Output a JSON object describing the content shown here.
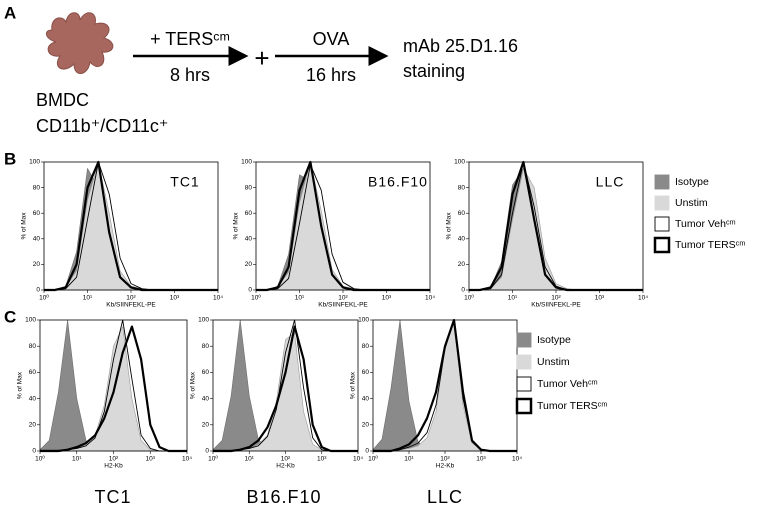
{
  "panel_a": {
    "label": "A",
    "step1": "+ TERSᶜᵐ",
    "time1": "8 hrs",
    "plus": "+",
    "step2": "OVA",
    "time2": "16 hrs",
    "readout": [
      "mAb 25.D1.16",
      "staining"
    ],
    "cells": [
      "BMDC",
      "CD11b⁺/CD11c⁺"
    ]
  },
  "panels": {
    "b": "B",
    "c": "C"
  },
  "chart_data": [
    {
      "type": "density",
      "title": "TC1",
      "x_label": "Kb/SIINFEKL-PE",
      "y_label": "% of Max",
      "xscale": "log",
      "xlim": [
        1,
        10000
      ],
      "ylim": [
        0,
        100
      ],
      "xticks": [
        {
          "value": 1,
          "label": "10⁰"
        },
        {
          "value": 10,
          "label": "10¹"
        },
        {
          "value": 100,
          "label": "10²"
        },
        {
          "value": 1000,
          "label": "10³"
        },
        {
          "value": 10000,
          "label": "10⁴"
        }
      ],
      "yticks": [
        0,
        20,
        40,
        60,
        80,
        100
      ],
      "x": [
        1,
        1.78,
        3.16,
        5.62,
        10,
        17.8,
        31.6,
        56.2,
        100,
        178,
        316,
        562,
        1000,
        1780,
        3160,
        5620,
        10000
      ],
      "series": [
        {
          "name": "Isotype",
          "color": "#6e6e6e",
          "fill": "#8a8a8a",
          "values": [
            0,
            0,
            3,
            30,
            95,
            80,
            20,
            4,
            1,
            0,
            0,
            0,
            0,
            0,
            0,
            0,
            0
          ]
        },
        {
          "name": "Unstim",
          "color": "#9a9a9a",
          "fill": "#d9d9d9",
          "values": [
            0,
            0,
            2,
            15,
            70,
            100,
            60,
            15,
            3,
            1,
            0,
            0,
            0,
            0,
            0,
            0,
            0
          ]
        },
        {
          "name": "Tumor Vehᶜᵐ",
          "color": "#000000",
          "values": [
            0,
            0,
            1,
            10,
            55,
            100,
            75,
            25,
            5,
            1,
            0,
            0,
            0,
            0,
            0,
            0,
            0
          ]
        },
        {
          "name": "Tumor TERSᶜᵐ",
          "color": "#000000",
          "bold": true,
          "values": [
            0,
            0,
            2,
            20,
            80,
            100,
            45,
            10,
            2,
            0,
            0,
            0,
            0,
            0,
            0,
            0,
            0
          ]
        }
      ]
    },
    {
      "type": "density",
      "title": "B16.F10",
      "x_label": "Kb/SIINFEKL-PE",
      "y_label": "% of Max",
      "xscale": "log",
      "xlim": [
        1,
        10000
      ],
      "ylim": [
        0,
        100
      ],
      "xticks": [
        {
          "value": 1,
          "label": "10⁰"
        },
        {
          "value": 10,
          "label": "10¹"
        },
        {
          "value": 100,
          "label": "10²"
        },
        {
          "value": 1000,
          "label": "10³"
        },
        {
          "value": 10000,
          "label": "10⁴"
        }
      ],
      "yticks": [
        0,
        20,
        40,
        60,
        80,
        100
      ],
      "x": [
        1,
        1.78,
        3.16,
        5.62,
        10,
        17.8,
        31.6,
        56.2,
        100,
        178,
        316,
        562,
        1000,
        1780,
        3160,
        5620,
        10000
      ],
      "series": [
        {
          "name": "Isotype",
          "color": "#6e6e6e",
          "fill": "#8a8a8a",
          "values": [
            0,
            0,
            3,
            28,
            90,
            85,
            22,
            4,
            1,
            0,
            0,
            0,
            0,
            0,
            0,
            0,
            0
          ]
        },
        {
          "name": "Unstim",
          "color": "#9a9a9a",
          "fill": "#d9d9d9",
          "values": [
            0,
            0,
            2,
            14,
            68,
            100,
            62,
            16,
            3,
            1,
            0,
            0,
            0,
            0,
            0,
            0,
            0
          ]
        },
        {
          "name": "Tumor Vehᶜᵐ",
          "color": "#000000",
          "values": [
            0,
            0,
            1,
            9,
            52,
            98,
            78,
            28,
            6,
            1,
            0,
            0,
            0,
            0,
            0,
            0,
            0
          ]
        },
        {
          "name": "Tumor TERSᶜᵐ",
          "color": "#000000",
          "bold": true,
          "values": [
            0,
            0,
            2,
            18,
            78,
            100,
            50,
            12,
            2,
            0,
            0,
            0,
            0,
            0,
            0,
            0,
            0
          ]
        }
      ]
    },
    {
      "type": "density",
      "title": "LLC",
      "x_label": "Kb/SIINFEKL-PE",
      "y_label": "% of Max",
      "xscale": "log",
      "xlim": [
        1,
        10000
      ],
      "ylim": [
        0,
        100
      ],
      "xticks": [
        {
          "value": 1,
          "label": "10⁰"
        },
        {
          "value": 10,
          "label": "10¹"
        },
        {
          "value": 100,
          "label": "10²"
        },
        {
          "value": 1000,
          "label": "10³"
        },
        {
          "value": 10000,
          "label": "10⁴"
        }
      ],
      "yticks": [
        0,
        20,
        40,
        60,
        80,
        100
      ],
      "x": [
        1,
        1.78,
        3.16,
        5.62,
        10,
        17.8,
        31.6,
        56.2,
        100,
        178,
        316,
        562,
        1000,
        1780,
        3160,
        5620,
        10000
      ],
      "series": [
        {
          "name": "Isotype",
          "color": "#6e6e6e",
          "fill": "#8a8a8a",
          "values": [
            0,
            0,
            2,
            22,
            82,
            95,
            30,
            5,
            1,
            0,
            0,
            0,
            0,
            0,
            0,
            0,
            0
          ]
        },
        {
          "name": "Unstim",
          "color": "#9a9a9a",
          "fill": "#d9d9d9",
          "values": [
            0,
            0,
            1,
            10,
            55,
            95,
            80,
            25,
            5,
            1,
            0,
            0,
            0,
            0,
            0,
            0,
            0
          ]
        },
        {
          "name": "Tumor Vehᶜᵐ",
          "color": "#000000",
          "values": [
            0,
            0,
            1,
            12,
            60,
            100,
            65,
            18,
            3,
            0,
            0,
            0,
            0,
            0,
            0,
            0,
            0
          ]
        },
        {
          "name": "Tumor TERSᶜᵐ",
          "color": "#000000",
          "bold": true,
          "values": [
            0,
            0,
            2,
            18,
            75,
            100,
            55,
            12,
            2,
            0,
            0,
            0,
            0,
            0,
            0,
            0,
            0
          ]
        }
      ]
    },
    {
      "type": "density",
      "title": "TC1",
      "x_label": "H2-Kb",
      "y_label": "% of Max",
      "xscale": "log",
      "xlim": [
        1,
        10000
      ],
      "ylim": [
        0,
        100
      ],
      "xticks": [
        {
          "value": 1,
          "label": "10⁰"
        },
        {
          "value": 10,
          "label": "10¹"
        },
        {
          "value": 100,
          "label": "10²"
        },
        {
          "value": 1000,
          "label": "10³"
        },
        {
          "value": 10000,
          "label": "10⁴"
        }
      ],
      "yticks": [
        0,
        20,
        40,
        60,
        80,
        100
      ],
      "x": [
        1,
        1.78,
        3.16,
        5.62,
        10,
        17.8,
        31.6,
        56.2,
        100,
        178,
        316,
        562,
        1000,
        1780,
        3160,
        5620,
        10000
      ],
      "series": [
        {
          "name": "Isotype",
          "color": "#6e6e6e",
          "fill": "#8a8a8a",
          "values": [
            1,
            8,
            45,
            100,
            40,
            8,
            1,
            0,
            0,
            0,
            0,
            0,
            0,
            0,
            0,
            0,
            0
          ]
        },
        {
          "name": "Unstim",
          "color": "#9a9a9a",
          "fill": "#d9d9d9",
          "values": [
            0,
            0,
            0,
            1,
            2,
            5,
            12,
            35,
            80,
            95,
            40,
            8,
            1,
            0,
            0,
            0,
            0
          ]
        },
        {
          "name": "Tumor Vehᶜᵐ",
          "color": "#000000",
          "values": [
            0,
            0,
            0,
            1,
            2,
            4,
            10,
            30,
            70,
            100,
            55,
            12,
            2,
            0,
            0,
            0,
            0
          ]
        },
        {
          "name": "Tumor TERSᶜᵐ",
          "color": "#000000",
          "bold": true,
          "values": [
            0,
            0,
            0,
            1,
            3,
            6,
            12,
            25,
            45,
            75,
            95,
            70,
            20,
            3,
            0,
            0,
            0
          ]
        }
      ]
    },
    {
      "type": "density",
      "title": "B16.F10",
      "x_label": "H2-Kb",
      "y_label": "% of Max",
      "xscale": "log",
      "xlim": [
        1,
        10000
      ],
      "ylim": [
        0,
        100
      ],
      "xticks": [
        {
          "value": 1,
          "label": "10⁰"
        },
        {
          "value": 10,
          "label": "10¹"
        },
        {
          "value": 100,
          "label": "10²"
        },
        {
          "value": 1000,
          "label": "10³"
        },
        {
          "value": 10000,
          "label": "10⁴"
        }
      ],
      "yticks": [
        0,
        20,
        40,
        60,
        80,
        100
      ],
      "x": [
        1,
        1.78,
        3.16,
        5.62,
        10,
        17.8,
        31.6,
        56.2,
        100,
        178,
        316,
        562,
        1000,
        1780,
        3160,
        5620,
        10000
      ],
      "series": [
        {
          "name": "Isotype",
          "color": "#6e6e6e",
          "fill": "#8a8a8a",
          "values": [
            1,
            8,
            42,
            100,
            42,
            9,
            1,
            0,
            0,
            0,
            0,
            0,
            0,
            0,
            0,
            0,
            0
          ]
        },
        {
          "name": "Unstim",
          "color": "#9a9a9a",
          "fill": "#d9d9d9",
          "values": [
            0,
            0,
            0,
            1,
            2,
            5,
            12,
            38,
            85,
            90,
            30,
            5,
            1,
            0,
            0,
            0,
            0
          ]
        },
        {
          "name": "Tumor Vehᶜᵐ",
          "color": "#000000",
          "values": [
            0,
            0,
            0,
            1,
            2,
            4,
            11,
            32,
            75,
            100,
            48,
            10,
            1,
            0,
            0,
            0,
            0
          ]
        },
        {
          "name": "Tumor TERSᶜᵐ",
          "color": "#000000",
          "bold": true,
          "values": [
            0,
            0,
            0,
            1,
            3,
            8,
            18,
            35,
            60,
            95,
            70,
            20,
            3,
            0,
            0,
            0,
            0
          ]
        }
      ]
    },
    {
      "type": "density",
      "title": "LLC",
      "x_label": "H2-Kb",
      "y_label": "% of Max",
      "xscale": "log",
      "xlim": [
        1,
        10000
      ],
      "ylim": [
        0,
        100
      ],
      "xticks": [
        {
          "value": 1,
          "label": "10⁰"
        },
        {
          "value": 10,
          "label": "10¹"
        },
        {
          "value": 100,
          "label": "10²"
        },
        {
          "value": 1000,
          "label": "10³"
        },
        {
          "value": 10000,
          "label": "10⁴"
        }
      ],
      "yticks": [
        0,
        20,
        40,
        60,
        80,
        100
      ],
      "x": [
        1,
        1.78,
        3.16,
        5.62,
        10,
        17.8,
        31.6,
        56.2,
        100,
        178,
        316,
        562,
        1000,
        1780,
        3160,
        5620,
        10000
      ],
      "series": [
        {
          "name": "Isotype",
          "color": "#6e6e6e",
          "fill": "#8a8a8a",
          "values": [
            1,
            9,
            48,
            100,
            38,
            7,
            1,
            0,
            0,
            0,
            0,
            0,
            0,
            0,
            0,
            0,
            0
          ]
        },
        {
          "name": "Unstim",
          "color": "#9a9a9a",
          "fill": "#d9d9d9",
          "values": [
            0,
            0,
            0,
            1,
            2,
            4,
            10,
            30,
            80,
            98,
            35,
            6,
            1,
            0,
            0,
            0,
            0
          ]
        },
        {
          "name": "Tumor Vehᶜᵐ",
          "color": "#000000",
          "values": [
            0,
            0,
            0,
            1,
            3,
            6,
            14,
            35,
            78,
            100,
            40,
            7,
            1,
            0,
            0,
            0,
            0
          ]
        },
        {
          "name": "Tumor TERSᶜᵐ",
          "color": "#000000",
          "bold": true,
          "values": [
            0,
            0,
            0,
            2,
            5,
            12,
            25,
            45,
            80,
            100,
            45,
            8,
            1,
            0,
            0,
            0,
            0
          ]
        }
      ]
    }
  ]
}
